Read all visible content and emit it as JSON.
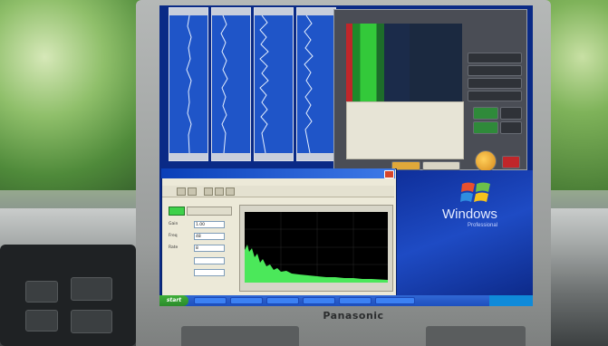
{
  "scene": {
    "laptop_brand": "Panasonic",
    "colors": {
      "foliage": "#7aa85e",
      "laptop_bezel": "#9a9d9c",
      "xp_blue": "#1e4bc4",
      "signal_green": "#3ed14a"
    }
  },
  "windows": {
    "logo_text": "Windows",
    "edition_text": "Professional"
  },
  "taskbar": {
    "start_label": "start"
  },
  "app_window": {
    "fields": [
      {
        "label": "Gain",
        "value": "1.00"
      },
      {
        "label": "Freq",
        "value": "48"
      },
      {
        "label": "Rate",
        "value": "8"
      }
    ]
  },
  "icons": [
    "windows-flag-icon",
    "start-flag-icon",
    "knob-icon"
  ]
}
